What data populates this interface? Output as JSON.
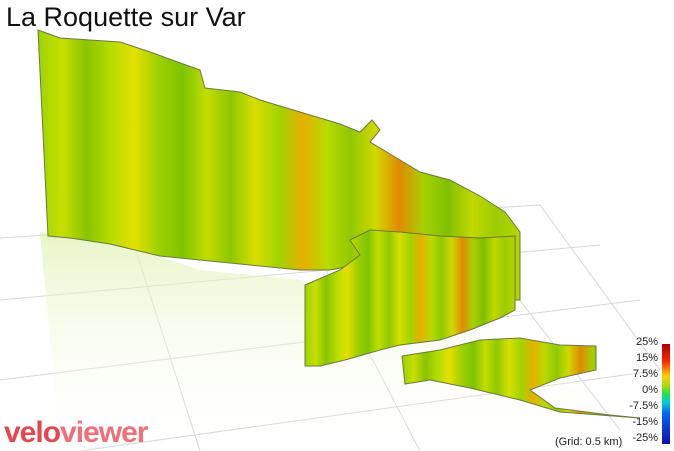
{
  "title": "La Roquette sur Var",
  "legend": {
    "labels": [
      "25%",
      "15%",
      "7.5%",
      "0%",
      "-7.5%",
      "-15%",
      "-25%"
    ]
  },
  "grid_note": "(Grid: 0.5 km)",
  "logo": {
    "part1": "velo",
    "part2": "viewer"
  },
  "colors": {
    "gradient_green": "#8fd400",
    "gradient_yellow": "#e6e400",
    "gradient_orange": "#e07800",
    "gradient_red": "#c02000",
    "brand": "#e8464f"
  }
}
